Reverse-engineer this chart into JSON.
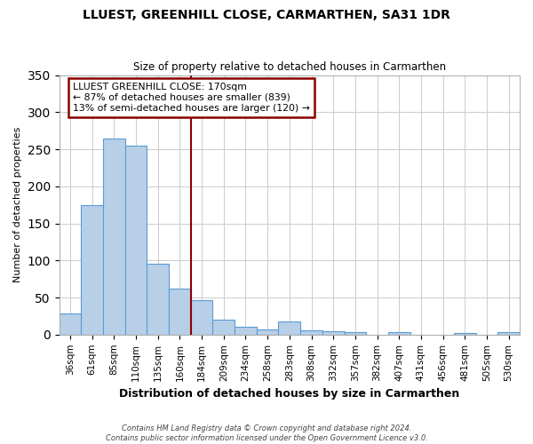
{
  "title": "LLUEST, GREENHILL CLOSE, CARMARTHEN, SA31 1DR",
  "subtitle": "Size of property relative to detached houses in Carmarthen",
  "xlabel": "Distribution of detached houses by size in Carmarthen",
  "ylabel": "Number of detached properties",
  "bar_labels": [
    "36sqm",
    "61sqm",
    "85sqm",
    "110sqm",
    "135sqm",
    "160sqm",
    "184sqm",
    "209sqm",
    "234sqm",
    "258sqm",
    "283sqm",
    "308sqm",
    "332sqm",
    "357sqm",
    "382sqm",
    "407sqm",
    "431sqm",
    "456sqm",
    "481sqm",
    "505sqm",
    "530sqm"
  ],
  "bar_values": [
    28,
    175,
    265,
    255,
    95,
    62,
    47,
    20,
    11,
    7,
    18,
    6,
    4,
    3,
    0,
    3,
    0,
    0,
    2,
    0,
    3
  ],
  "bar_color": "#b8cfe8",
  "bar_edge_color": "#5b9bd5",
  "vline_x": 5.5,
  "vline_color": "#8b0000",
  "annotation_title": "LLUEST GREENHILL CLOSE: 170sqm",
  "annotation_line1": "← 87% of detached houses are smaller (839)",
  "annotation_line2": "13% of semi-detached houses are larger (120) →",
  "annotation_box_color": "#8b0000",
  "annotation_bg": "white",
  "ylim": [
    0,
    350
  ],
  "yticks": [
    0,
    50,
    100,
    150,
    200,
    250,
    300,
    350
  ],
  "footnote1": "Contains HM Land Registry data © Crown copyright and database right 2024.",
  "footnote2": "Contains public sector information licensed under the Open Government Licence v3.0."
}
